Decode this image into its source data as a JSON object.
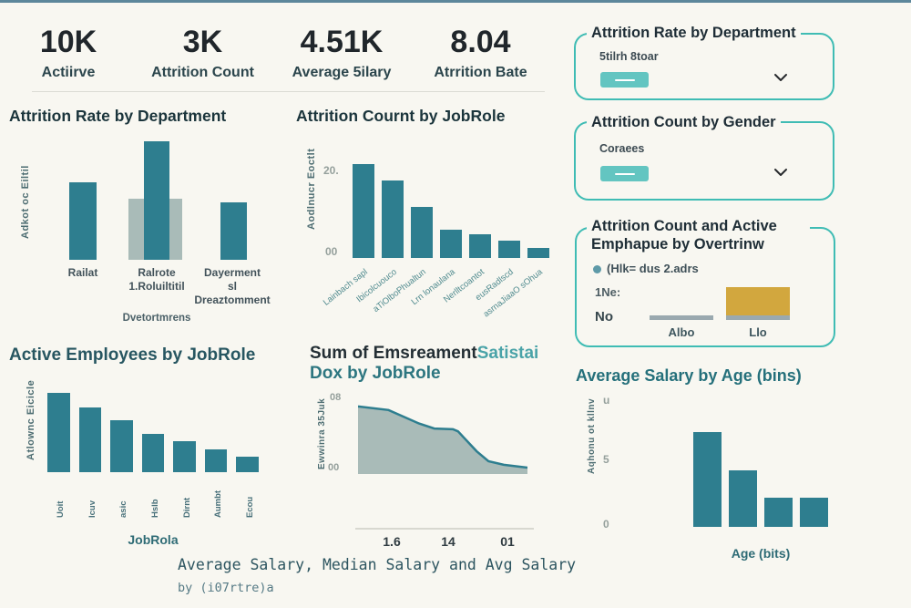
{
  "colors": {
    "background": "#f8f7f1",
    "top_line": "#5d879b",
    "teal": "#2e7e8f",
    "area_fill": "#a9bbb8",
    "panel_border": "#3fbcb4",
    "pill": "#63c5c1",
    "gold": "#d2a73e",
    "gray_bar": "#9aa9af"
  },
  "kpis": [
    {
      "value": "10K",
      "label": "Actiirve"
    },
    {
      "value": "3K",
      "label": "Attrition Count"
    },
    {
      "value": "4.51K",
      "label": "Average 5ilary"
    },
    {
      "value": "8.04",
      "label": "Atrrition Bate"
    }
  ],
  "slicers": [
    {
      "title": "Attrition Rate by Department",
      "subtext": "5tilrh 8toar"
    },
    {
      "title": "Attrition Count by Gender",
      "subtext": "Coraees"
    }
  ],
  "chart_data": [
    {
      "type": "bar",
      "title": "Attrition Rate by Department",
      "ylabel": "Adkot oc Eiltil",
      "xlabel": "Dvetortmrens",
      "categories": [
        "Railat",
        "Ralrote 1.Roluiltitil",
        "Dayerment sl Dreaztomment"
      ],
      "display_labels": [
        [
          "Railat"
        ],
        [
          "Ralrote",
          "1.Roluiltitil"
        ],
        [
          "Dayerment",
          "sl",
          "Dreaztomment"
        ]
      ],
      "values": [
        85,
        130,
        63
      ],
      "background_bar": {
        "category": "Ralrote 1.Roluiltitil",
        "value": 67
      },
      "ylim": [
        0,
        145
      ],
      "grid": false
    },
    {
      "type": "bar",
      "title": "Attrition Cournt by JobRole",
      "ylabel": "Aodlnucr Eoctlt",
      "yticks": [
        "20.",
        "00"
      ],
      "categories": [
        "Lainbach sapl",
        "Ibicolcuouco",
        "aTiOlboPhualtun",
        "Lrn lonaulana",
        "Nerlltcoantot",
        "eusRadlscd",
        "asrnaJiaaO sOhua"
      ],
      "values": [
        22,
        18,
        12,
        6.7,
        5.5,
        4,
        2.3
      ],
      "ymax": 23,
      "grid": false
    },
    {
      "type": "bar",
      "title": "Active Employees by JobRole",
      "ylabel": "Atlownc Eicicle",
      "xlabel": "JobRola",
      "categories": [
        "Uoit",
        "Icuv",
        "asic",
        "Hslb",
        "Dirnt",
        "Aumbt",
        "Ecou"
      ],
      "values": [
        8.7,
        7.1,
        5.7,
        4.2,
        3.4,
        2.5,
        1.7
      ],
      "ymax": 9,
      "grid": false
    },
    {
      "type": "area",
      "title_main": "Sum of Emsreament",
      "title_accent": "Satistai",
      "title_line2": "Dox by JobRole",
      "ylabel": "Ewwinra 35Juk",
      "yticks": [
        "08",
        "00"
      ],
      "xticks": [
        "1.6",
        "14",
        "01"
      ],
      "points": [
        [
          0,
          95
        ],
        [
          18,
          90
        ],
        [
          36,
          71
        ],
        [
          45,
          64
        ],
        [
          56,
          63
        ],
        [
          59,
          60
        ],
        [
          70,
          32
        ],
        [
          77,
          18
        ],
        [
          86,
          13
        ],
        [
          100,
          9
        ]
      ]
    },
    {
      "type": "bar",
      "title": "Average Salary by Age (bins)",
      "ylabel": "Aqhonu ot kllnv",
      "xlabel": "Age (bits)",
      "yticks": [
        "u",
        "5",
        "0"
      ],
      "categories": [
        "",
        "",
        "",
        ""
      ],
      "values": [
        7.2,
        4.3,
        2.2,
        2.2
      ],
      "ymax": 7.5,
      "grid": false
    },
    {
      "type": "bar",
      "title_line1": "Attrition Count and Active",
      "title_line2": "Emphapue by Overtrinw",
      "legend": "(Hlk= dus 2.adrs",
      "rows": [
        "1Ne:",
        "No"
      ],
      "categories": [
        "Albo",
        "Llo"
      ],
      "gold_value": 31,
      "gray_value": 70
    }
  ],
  "caption": {
    "line1": "Average Salary, Median Salary and Avg Salary",
    "line2": "by (i07rtre)a"
  }
}
